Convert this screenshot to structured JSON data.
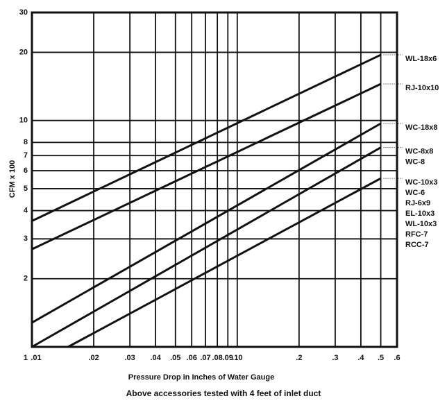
{
  "chart_data": {
    "type": "line",
    "xlabel": "Pressure Drop in Inches of Water Gauge",
    "ylabel": "CFM x 100",
    "note": "Above accessories tested with 4 feet of inlet duct",
    "xscale": "log",
    "yscale": "log",
    "grid": true,
    "color": "#111111",
    "xlim": [
      0.01,
      0.6
    ],
    "ylim": [
      1,
      30
    ],
    "xticks": [
      {
        "value": 0.01,
        "label": ".01"
      },
      {
        "value": 0.02,
        "label": ".02"
      },
      {
        "value": 0.03,
        "label": ".03"
      },
      {
        "value": 0.04,
        "label": ".04"
      },
      {
        "value": 0.05,
        "label": ".05"
      },
      {
        "value": 0.06,
        "label": ".06"
      },
      {
        "value": 0.07,
        "label": ".07"
      },
      {
        "value": 0.08,
        "label": ".08"
      },
      {
        "value": 0.09,
        "label": ".09"
      },
      {
        "value": 0.1,
        "label": ".10"
      },
      {
        "value": 0.2,
        "label": ".2"
      },
      {
        "value": 0.3,
        "label": ".3"
      },
      {
        "value": 0.4,
        "label": ".4"
      },
      {
        "value": 0.5,
        "label": ".5"
      },
      {
        "value": 0.6,
        "label": ".6"
      }
    ],
    "yticks": [
      1,
      2,
      3,
      4,
      5,
      6,
      7,
      8,
      10,
      20,
      30
    ],
    "series": [
      {
        "labels": [
          "WL-18x6"
        ],
        "x": [
          0.01,
          0.5
        ],
        "values": [
          3.6,
          19.5
        ]
      },
      {
        "labels": [
          "RJ-10x10"
        ],
        "x": [
          0.01,
          0.5
        ],
        "values": [
          2.7,
          14.5
        ]
      },
      {
        "labels": [
          "WC-18x8"
        ],
        "x": [
          0.01,
          0.5
        ],
        "values": [
          1.28,
          9.7
        ]
      },
      {
        "labels": [
          "WC-8x8",
          "WC-8"
        ],
        "x": [
          0.01,
          0.5
        ],
        "values": [
          1,
          7.6
        ]
      },
      {
        "labels": [
          "WC-10x3",
          "WC-6",
          "RJ-6x9",
          "EL-10x3",
          "WL-10x3",
          "RFC-7",
          "RCC-7"
        ],
        "x": [
          0.015,
          0.5
        ],
        "values": [
          1,
          5.55
        ]
      }
    ]
  }
}
